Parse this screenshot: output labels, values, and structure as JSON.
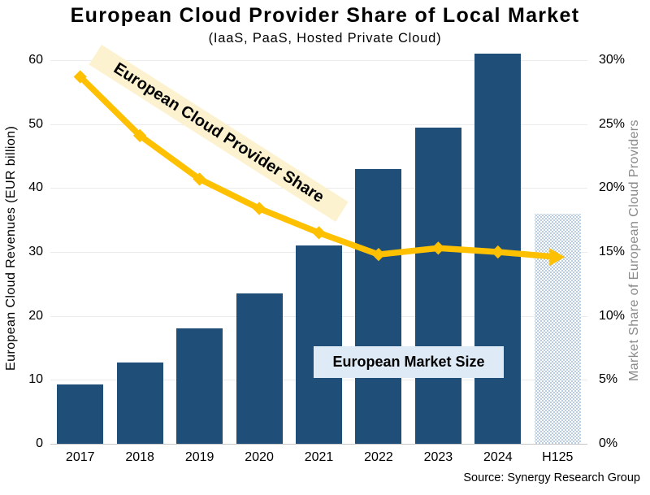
{
  "title": "European Cloud Provider Share of Local Market",
  "subtitle": "(IaaS, PaaS, Hosted Private Cloud)",
  "source": "Source: Synergy Research Group",
  "annotations": {
    "line_label": "European Cloud Provider Share",
    "line_label_bg": "#FCF2D0",
    "bars_label": "European Market Size",
    "bars_label_bg": "#DEEBF7"
  },
  "colors": {
    "bar": "#1F4E79",
    "bar_pattern_dot": "#9FBDDD",
    "line": "#FFC000"
  },
  "chart_data": {
    "type": "combo-bar-line",
    "categories": [
      "2017",
      "2018",
      "2019",
      "2020",
      "2021",
      "2022",
      "2023",
      "2024",
      "H125"
    ],
    "series": [
      {
        "name": "European Market Size (EUR billion)",
        "type": "bar",
        "axis": "left",
        "values": [
          9.3,
          12.7,
          18.0,
          23.5,
          31.0,
          43.0,
          49.5,
          61.0,
          36.0
        ]
      },
      {
        "name": "European Cloud Provider Share (%)",
        "type": "line",
        "axis": "right",
        "values": [
          28.7,
          24.1,
          20.7,
          18.4,
          16.5,
          14.8,
          15.3,
          15.0,
          14.6
        ]
      }
    ],
    "ylabel_left": "European Cloud Revenues (EUR billion)",
    "ylabel_right": "Market Share of European Cloud Providers",
    "ylim_left": [
      0,
      60
    ],
    "ylim_right": [
      0,
      30
    ],
    "left_ticks": [
      "0",
      "10",
      "20",
      "30",
      "40",
      "50",
      "60"
    ],
    "right_ticks": [
      "0%",
      "5%",
      "10%",
      "15%",
      "20%",
      "25%",
      "30%"
    ],
    "grid": "horizontal",
    "last_bar_pattern": true
  }
}
